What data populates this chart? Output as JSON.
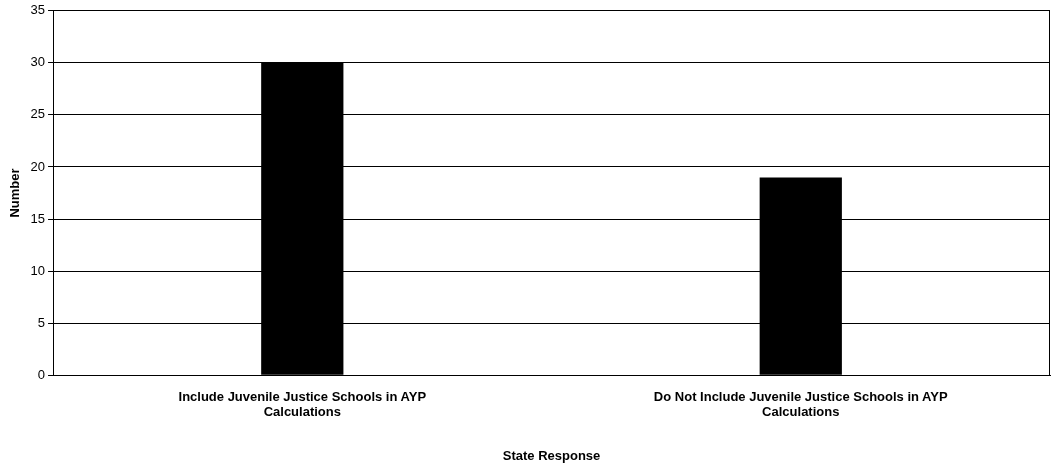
{
  "chart_data": {
    "type": "bar",
    "xlabel": "State Response",
    "ylabel": "Number",
    "categories": [
      "Include Juvenile Justice Schools in AYP Calculations",
      "Do Not Include Juvenile Justice Schools in AYP Calculations"
    ],
    "values": [
      30,
      19
    ],
    "color": "#000000",
    "ylim": [
      0,
      35
    ],
    "yticks": [
      0,
      5,
      10,
      15,
      20,
      25,
      30,
      35
    ],
    "grid": "y",
    "legend": false
  }
}
